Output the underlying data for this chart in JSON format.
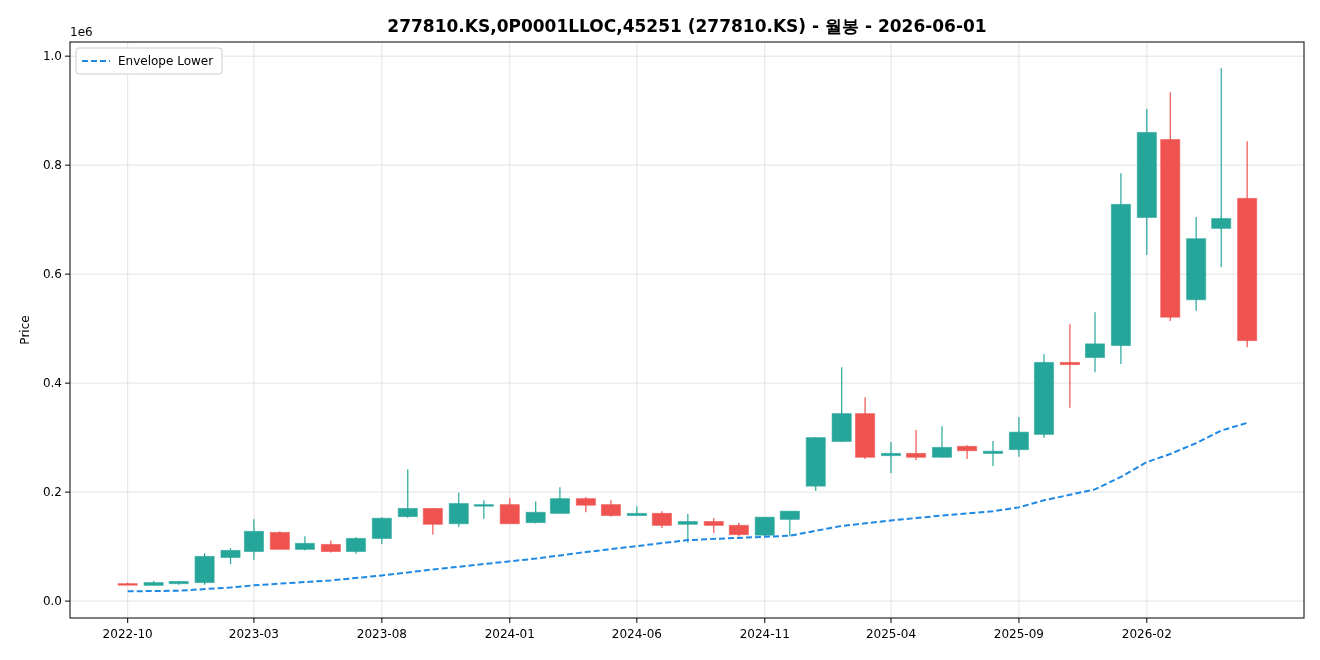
{
  "chart_data": {
    "type": "candlestick",
    "title": "277810.KS,0P0001LLOC,45251 (277810.KS) - 월봉 - 2026-06-01",
    "ylabel": "Price",
    "annotations": [
      "1e6"
    ],
    "x": [
      "2022-10",
      "2022-11",
      "2022-12",
      "2023-01",
      "2023-02",
      "2023-03",
      "2023-04",
      "2023-05",
      "2023-06",
      "2023-07",
      "2023-08",
      "2023-09",
      "2023-10",
      "2023-11",
      "2023-12",
      "2024-01",
      "2024-02",
      "2024-03",
      "2024-04",
      "2024-05",
      "2024-06",
      "2024-07",
      "2024-08",
      "2024-09",
      "2024-10",
      "2024-11",
      "2024-12",
      "2025-01",
      "2025-02",
      "2025-03",
      "2025-04",
      "2025-05",
      "2025-06",
      "2025-07",
      "2025-08",
      "2025-09",
      "2025-10",
      "2025-11",
      "2025-12",
      "2026-01",
      "2026-02",
      "2026-03",
      "2026-04",
      "2026-05",
      "2026-06"
    ],
    "ohlc": [
      [
        0.032,
        0.034,
        0.03,
        0.03
      ],
      [
        0.029,
        0.037,
        0.028,
        0.034
      ],
      [
        0.032,
        0.037,
        0.03,
        0.036
      ],
      [
        0.034,
        0.088,
        0.03,
        0.082
      ],
      [
        0.08,
        0.097,
        0.068,
        0.093
      ],
      [
        0.091,
        0.15,
        0.076,
        0.128
      ],
      [
        0.126,
        0.128,
        0.095,
        0.095
      ],
      [
        0.095,
        0.119,
        0.093,
        0.106
      ],
      [
        0.104,
        0.111,
        0.089,
        0.091
      ],
      [
        0.091,
        0.117,
        0.087,
        0.115
      ],
      [
        0.115,
        0.154,
        0.105,
        0.152
      ],
      [
        0.155,
        0.242,
        0.153,
        0.17
      ],
      [
        0.17,
        0.171,
        0.122,
        0.141
      ],
      [
        0.142,
        0.199,
        0.136,
        0.179
      ],
      [
        0.175,
        0.185,
        0.151,
        0.177
      ],
      [
        0.177,
        0.189,
        0.142,
        0.142
      ],
      [
        0.144,
        0.183,
        0.143,
        0.163
      ],
      [
        0.161,
        0.209,
        0.16,
        0.188
      ],
      [
        0.188,
        0.191,
        0.163,
        0.176
      ],
      [
        0.177,
        0.185,
        0.155,
        0.157
      ],
      [
        0.157,
        0.174,
        0.157,
        0.161
      ],
      [
        0.161,
        0.165,
        0.134,
        0.139
      ],
      [
        0.141,
        0.16,
        0.107,
        0.146
      ],
      [
        0.146,
        0.152,
        0.125,
        0.139
      ],
      [
        0.139,
        0.144,
        0.118,
        0.122
      ],
      [
        0.121,
        0.154,
        0.118,
        0.154
      ],
      [
        0.15,
        0.165,
        0.119,
        0.165
      ],
      [
        0.211,
        0.301,
        0.202,
        0.3
      ],
      [
        0.293,
        0.429,
        0.292,
        0.344
      ],
      [
        0.344,
        0.374,
        0.261,
        0.264
      ],
      [
        0.267,
        0.292,
        0.235,
        0.271
      ],
      [
        0.271,
        0.314,
        0.259,
        0.264
      ],
      [
        0.264,
        0.321,
        0.263,
        0.282
      ],
      [
        0.284,
        0.286,
        0.261,
        0.276
      ],
      [
        0.271,
        0.294,
        0.248,
        0.275
      ],
      [
        0.278,
        0.338,
        0.265,
        0.31
      ],
      [
        0.306,
        0.453,
        0.3,
        0.438
      ],
      [
        0.438,
        0.508,
        0.355,
        0.434
      ],
      [
        0.447,
        0.53,
        0.42,
        0.472
      ],
      [
        0.469,
        0.785,
        0.435,
        0.728
      ],
      [
        0.704,
        0.903,
        0.635,
        0.86
      ],
      [
        0.847,
        0.934,
        0.514,
        0.521
      ],
      [
        0.553,
        0.705,
        0.533,
        0.665
      ],
      [
        0.684,
        0.978,
        0.613,
        0.702
      ],
      [
        0.739,
        0.844,
        0.466,
        0.478
      ]
    ],
    "colors": [
      "#ef5350",
      "#26a69a",
      "#26a69a",
      "#26a69a",
      "#26a69a",
      "#26a69a",
      "#ef5350",
      "#26a69a",
      "#ef5350",
      "#26a69a",
      "#26a69a",
      "#26a69a",
      "#ef5350",
      "#26a69a",
      "#26a69a",
      "#ef5350",
      "#26a69a",
      "#26a69a",
      "#ef5350",
      "#ef5350",
      "#26a69a",
      "#ef5350",
      "#26a69a",
      "#ef5350",
      "#ef5350",
      "#26a69a",
      "#26a69a",
      "#26a69a",
      "#26a69a",
      "#ef5350",
      "#26a69a",
      "#ef5350",
      "#26a69a",
      "#ef5350",
      "#26a69a",
      "#26a69a",
      "#26a69a",
      "#ef5350",
      "#26a69a",
      "#26a69a",
      "#26a69a",
      "#ef5350",
      "#26a69a",
      "#26a69a",
      "#ef5350"
    ],
    "series": [
      {
        "name": "Envelope Lower",
        "type": "line",
        "color": "#1e88e5",
        "line_style": "dashed",
        "x": [
          "2022-10",
          "2022-12",
          "2023-02",
          "2023-03",
          "2023-06",
          "2023-08",
          "2023-10",
          "2023-12",
          "2024-02",
          "2024-04",
          "2024-06",
          "2024-08",
          "2024-10",
          "2024-12",
          "2025-02",
          "2025-04",
          "2025-06",
          "2025-08",
          "2025-09",
          "2025-10",
          "2025-12",
          "2026-01",
          "2026-02",
          "2026-03",
          "2026-04",
          "2026-05",
          "2026-06"
        ],
        "values": [
          0.018,
          0.019,
          0.025,
          0.029,
          0.038,
          0.047,
          0.058,
          0.068,
          0.078,
          0.09,
          0.101,
          0.112,
          0.116,
          0.12,
          0.138,
          0.148,
          0.157,
          0.165,
          0.172,
          0.185,
          0.205,
          0.228,
          0.255,
          0.27,
          0.29,
          0.313,
          0.327
        ]
      }
    ],
    "xlim": [
      "2022-07-24",
      "2026-08-08"
    ],
    "xticks": [
      {
        "value": "2022-10",
        "label": "2022-10"
      },
      {
        "value": "2023-03",
        "label": "2023-03"
      },
      {
        "value": "2023-08",
        "label": "2023-08"
      },
      {
        "value": "2024-01",
        "label": "2024-01"
      },
      {
        "value": "2024-06",
        "label": "2024-06"
      },
      {
        "value": "2024-11",
        "label": "2024-11"
      },
      {
        "value": "2025-04",
        "label": "2025-04"
      },
      {
        "value": "2025-09",
        "label": "2025-09"
      },
      {
        "value": "2026-02",
        "label": "2026-02"
      }
    ],
    "ylim": [
      -0.031,
      1.026
    ],
    "yticks": [
      {
        "value": 0,
        "label": "0.0"
      },
      0.2,
      0.4,
      0.6,
      0.8,
      {
        "value": 1,
        "label": "1.0"
      }
    ],
    "grid": true,
    "legend": "top left"
  }
}
